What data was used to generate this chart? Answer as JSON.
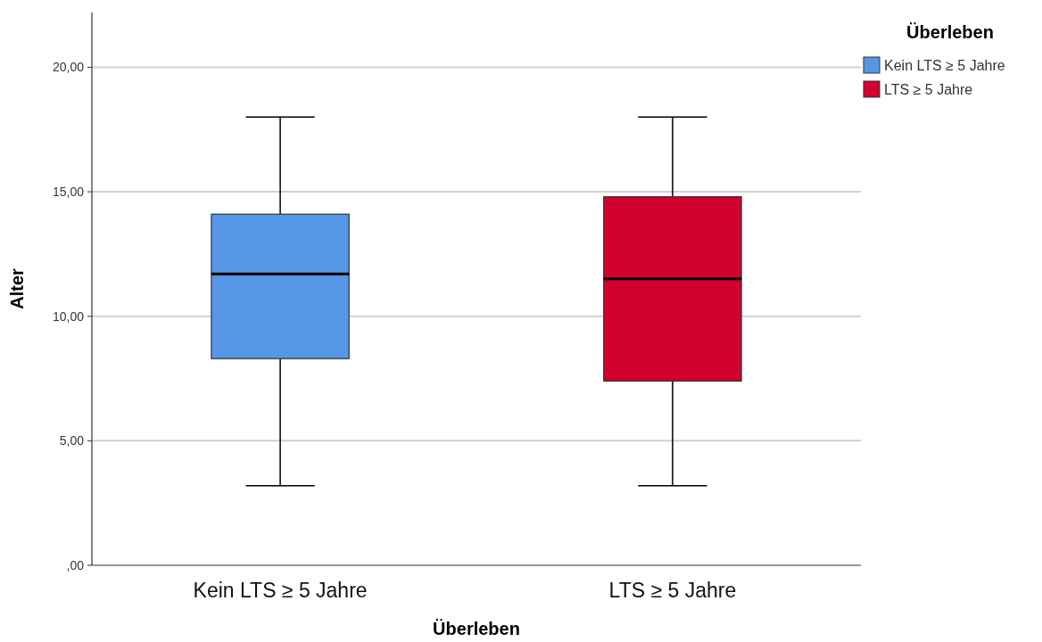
{
  "chart_data": {
    "type": "box",
    "xlabel": "Überleben",
    "ylabel": "Alter",
    "legend_title": "Überleben",
    "legend": "top right",
    "grid": "y",
    "categories": [
      "Kein LTS ≥ 5 Jahre",
      "LTS ≥ 5 Jahre"
    ],
    "series": [
      {
        "name": "Kein LTS ≥ 5 Jahre",
        "color": "#5596e6",
        "boxes": [
          {
            "low": 3.2,
            "q1": 8.3,
            "median": 11.7,
            "q3": 14.1,
            "high": 18.0
          },
          null
        ]
      },
      {
        "name": "LTS ≥ 5 Jahre",
        "color": "#d1002f",
        "boxes": [
          null,
          {
            "low": 3.2,
            "q1": 7.4,
            "median": 11.5,
            "q3": 14.8,
            "high": 18.0
          }
        ]
      }
    ],
    "ylim": [
      0,
      22.2
    ],
    "yticks": [
      {
        "value": 0,
        "label": ",00"
      },
      {
        "value": 5,
        "label": "5,00"
      },
      {
        "value": 10,
        "label": "10,00"
      },
      {
        "value": 15,
        "label": "15,00"
      },
      {
        "value": 20,
        "label": "20,00"
      }
    ]
  }
}
